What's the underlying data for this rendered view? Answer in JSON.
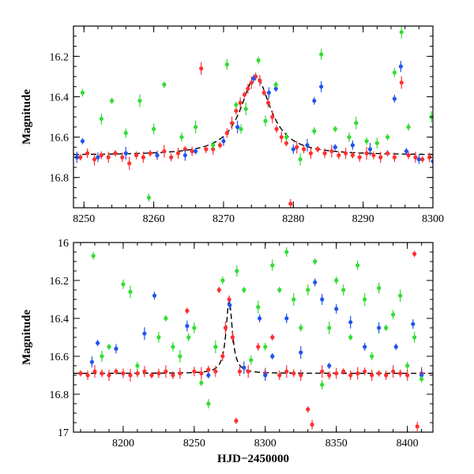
{
  "chart_data": [
    {
      "type": "scatter",
      "panel": "top",
      "xlabel": "",
      "ylabel": "Magnitude",
      "xlim": [
        8248.5,
        8300
      ],
      "ylim": [
        16.95,
        16.05
      ],
      "y_inverted": true,
      "x_ticks": [
        8250,
        8260,
        8270,
        8280,
        8290,
        8300
      ],
      "y_ticks": [
        16.2,
        16.4,
        16.6,
        16.8
      ],
      "baseline": 16.69,
      "peak": {
        "x": 8274.6,
        "y": 16.3
      },
      "model_curve": {
        "style": "dashed",
        "color": "#000000",
        "peak_x": 8274.6,
        "peak_mag": 16.3,
        "baseline_mag": 16.69,
        "width_days": 2.6
      },
      "series": [
        {
          "color": "#ff3030",
          "points": [
            [
              8249.5,
              16.7
            ],
            [
              8250.5,
              16.68
            ],
            [
              8251.5,
              16.71
            ],
            [
              8252.5,
              16.69
            ],
            [
              8253.5,
              16.7
            ],
            [
              8254.5,
              16.68
            ],
            [
              8255.5,
              16.7
            ],
            [
              8256.5,
              16.73
            ],
            [
              8257.5,
              16.69
            ],
            [
              8258.5,
              16.7
            ],
            [
              8259.5,
              16.68
            ],
            [
              8260.5,
              16.69
            ],
            [
              8261.5,
              16.67
            ],
            [
              8262.5,
              16.7
            ],
            [
              8263.5,
              16.68
            ],
            [
              8264.5,
              16.66
            ],
            [
              8265.5,
              16.67
            ],
            [
              8266.8,
              16.26
            ],
            [
              8267.5,
              16.66
            ],
            [
              8268.5,
              16.66
            ],
            [
              8269.5,
              16.64
            ],
            [
              8270.5,
              16.58
            ],
            [
              8271.2,
              16.53
            ],
            [
              8271.8,
              16.47
            ],
            [
              8272.4,
              16.43
            ],
            [
              8273.0,
              16.39
            ],
            [
              8273.5,
              16.36
            ],
            [
              8274.0,
              16.33
            ],
            [
              8274.6,
              16.3
            ],
            [
              8275.2,
              16.32
            ],
            [
              8275.8,
              16.38
            ],
            [
              8276.4,
              16.43
            ],
            [
              8277.0,
              16.5
            ],
            [
              8277.6,
              16.56
            ],
            [
              8278.3,
              16.6
            ],
            [
              8279.0,
              16.63
            ],
            [
              8279.6,
              16.93
            ],
            [
              8280.5,
              16.65
            ],
            [
              8281.5,
              16.66
            ],
            [
              8282.5,
              16.68
            ],
            [
              8283.5,
              16.66
            ],
            [
              8284.5,
              16.68
            ],
            [
              8285.5,
              16.67
            ],
            [
              8286.5,
              16.69
            ],
            [
              8287.5,
              16.68
            ],
            [
              8288.5,
              16.69
            ],
            [
              8289.5,
              16.7
            ],
            [
              8290.5,
              16.68
            ],
            [
              8291.5,
              16.69
            ],
            [
              8292.5,
              16.7
            ],
            [
              8293.5,
              16.68
            ],
            [
              8294.5,
              16.7
            ],
            [
              8295.5,
              16.33
            ],
            [
              8296.5,
              16.69
            ],
            [
              8297.5,
              16.7
            ],
            [
              8298.5,
              16.71
            ],
            [
              8299.5,
              16.7
            ]
          ]
        },
        {
          "color": "#2255ee",
          "points": [
            [
              8249.0,
              16.7
            ],
            [
              8249.8,
              16.62
            ],
            [
              8252.0,
              16.7
            ],
            [
              8256.0,
              16.68
            ],
            [
              8260.5,
              16.69
            ],
            [
              8264.5,
              16.69
            ],
            [
              8266.0,
              16.67
            ],
            [
              8270.0,
              16.62
            ],
            [
              8272.0,
              16.55
            ],
            [
              8274.3,
              16.31
            ],
            [
              8276.5,
              16.38
            ],
            [
              8277.5,
              16.36
            ],
            [
              8280.0,
              16.66
            ],
            [
              8282.0,
              16.64
            ],
            [
              8283.0,
              16.42
            ],
            [
              8284.0,
              16.35
            ],
            [
              8286.0,
              16.65
            ],
            [
              8288.5,
              16.64
            ],
            [
              8291.0,
              16.66
            ],
            [
              8294.5,
              16.41
            ],
            [
              8295.4,
              16.25
            ],
            [
              8296.2,
              16.67
            ],
            [
              8298.0,
              16.71
            ],
            [
              8300.0,
              16.72
            ]
          ]
        },
        {
          "color": "#33dd33",
          "points": [
            [
              8249.8,
              16.38
            ],
            [
              8252.5,
              16.51
            ],
            [
              8254.0,
              16.42
            ],
            [
              8256.0,
              16.58
            ],
            [
              8258.0,
              16.42
            ],
            [
              8259.3,
              16.9
            ],
            [
              8260.0,
              16.56
            ],
            [
              8261.5,
              16.34
            ],
            [
              8264.0,
              16.6
            ],
            [
              8266.0,
              16.55
            ],
            [
              8268.5,
              16.64
            ],
            [
              8270.5,
              16.24
            ],
            [
              8271.8,
              16.44
            ],
            [
              8272.5,
              16.56
            ],
            [
              8273.2,
              16.46
            ],
            [
              8275.0,
              16.22
            ],
            [
              8276.0,
              16.52
            ],
            [
              8277.5,
              16.34
            ],
            [
              8279.0,
              16.6
            ],
            [
              8281.0,
              16.71
            ],
            [
              8283.0,
              16.57
            ],
            [
              8284.0,
              16.19
            ],
            [
              8286.0,
              16.56
            ],
            [
              8288.0,
              16.6
            ],
            [
              8289.0,
              16.53
            ],
            [
              8290.5,
              16.62
            ],
            [
              8292.0,
              16.63
            ],
            [
              8293.5,
              16.6
            ],
            [
              8294.5,
              16.28
            ],
            [
              8295.5,
              16.08
            ],
            [
              8296.5,
              16.55
            ],
            [
              8299.8,
              16.5
            ]
          ]
        }
      ]
    },
    {
      "type": "scatter",
      "panel": "bottom",
      "xlabel": "HJD−2450000",
      "ylabel": "Magnitude",
      "xlim": [
        8165,
        8418
      ],
      "ylim": [
        17.0,
        16.0
      ],
      "y_inverted": true,
      "x_ticks": [
        8200,
        8250,
        8300,
        8350,
        8400
      ],
      "y_ticks": [
        16.0,
        16.2,
        16.4,
        16.6,
        16.8,
        17.0
      ],
      "baseline": 16.69,
      "peak": {
        "x": 8274.6,
        "y": 16.3
      },
      "model_curve": {
        "style": "dashed",
        "color": "#000000",
        "peak_x": 8274.6,
        "peak_mag": 16.3,
        "baseline_mag": 16.69,
        "width_days": 2.6
      },
      "series": [
        {
          "color": "#ff3030",
          "points": [
            [
              8170,
              16.69
            ],
            [
              8175,
              16.7
            ],
            [
              8180,
              16.68
            ],
            [
              8185,
              16.69
            ],
            [
              8190,
              16.7
            ],
            [
              8195,
              16.68
            ],
            [
              8200,
              16.69
            ],
            [
              8205,
              16.7
            ],
            [
              8210,
              16.69
            ],
            [
              8215,
              16.68
            ],
            [
              8220,
              16.7
            ],
            [
              8225,
              16.69
            ],
            [
              8230,
              16.68
            ],
            [
              8235,
              16.7
            ],
            [
              8240,
              16.69
            ],
            [
              8245,
              16.36
            ],
            [
              8250,
              16.68
            ],
            [
              8255,
              16.69
            ],
            [
              8260,
              16.67
            ],
            [
              8265,
              16.68
            ],
            [
              8267.5,
              16.25
            ],
            [
              8270,
              16.6
            ],
            [
              8272,
              16.45
            ],
            [
              8274.6,
              16.3
            ],
            [
              8277,
              16.5
            ],
            [
              8279.5,
              16.94
            ],
            [
              8282,
              16.68
            ],
            [
              8288,
              16.68
            ],
            [
              8295,
              16.55
            ],
            [
              8300,
              16.69
            ],
            [
              8305,
              16.5
            ],
            [
              8310,
              16.7
            ],
            [
              8315,
              16.68
            ],
            [
              8320,
              16.69
            ],
            [
              8325,
              16.7
            ],
            [
              8330,
              16.88
            ],
            [
              8333,
              16.96
            ],
            [
              8340,
              16.68
            ],
            [
              8345,
              16.7
            ],
            [
              8350,
              16.69
            ],
            [
              8355,
              16.68
            ],
            [
              8360,
              16.7
            ],
            [
              8365,
              16.69
            ],
            [
              8370,
              16.68
            ],
            [
              8375,
              16.7
            ],
            [
              8380,
              16.69
            ],
            [
              8385,
              16.7
            ],
            [
              8390,
              16.68
            ],
            [
              8395,
              16.69
            ],
            [
              8400,
              16.7
            ],
            [
              8405,
              16.06
            ],
            [
              8407,
              16.97
            ],
            [
              8410,
              16.69
            ]
          ]
        },
        {
          "color": "#2255ee",
          "points": [
            [
              8178,
              16.63
            ],
            [
              8182,
              16.53
            ],
            [
              8195,
              16.56
            ],
            [
              8215,
              16.48
            ],
            [
              8222,
              16.28
            ],
            [
              8245,
              16.44
            ],
            [
              8260,
              16.7
            ],
            [
              8275,
              16.33
            ],
            [
              8285,
              16.66
            ],
            [
              8296,
              16.4
            ],
            [
              8300,
              16.7
            ],
            [
              8305,
              16.6
            ],
            [
              8315,
              16.4
            ],
            [
              8325,
              16.58
            ],
            [
              8335,
              16.21
            ],
            [
              8340,
              16.3
            ],
            [
              8345,
              16.65
            ],
            [
              8350,
              16.35
            ],
            [
              8360,
              16.42
            ],
            [
              8370,
              16.55
            ],
            [
              8380,
              16.45
            ],
            [
              8392,
              16.55
            ],
            [
              8404,
              16.43
            ],
            [
              8410,
              16.7
            ]
          ]
        },
        {
          "color": "#33dd33",
          "points": [
            [
              8179,
              16.07
            ],
            [
              8185,
              16.6
            ],
            [
              8190,
              16.55
            ],
            [
              8200,
              16.22
            ],
            [
              8205,
              16.26
            ],
            [
              8210,
              16.65
            ],
            [
              8225,
              16.5
            ],
            [
              8230,
              16.4
            ],
            [
              8235,
              16.55
            ],
            [
              8240,
              16.6
            ],
            [
              8246,
              16.5
            ],
            [
              8250,
              16.45
            ],
            [
              8255,
              16.74
            ],
            [
              8260,
              16.85
            ],
            [
              8265,
              16.55
            ],
            [
              8270,
              16.2
            ],
            [
              8280,
              16.15
            ],
            [
              8285,
              16.25
            ],
            [
              8290,
              16.62
            ],
            [
              8295,
              16.34
            ],
            [
              8300,
              16.55
            ],
            [
              8305,
              16.12
            ],
            [
              8310,
              16.25
            ],
            [
              8315,
              16.05
            ],
            [
              8320,
              16.3
            ],
            [
              8325,
              16.45
            ],
            [
              8330,
              16.25
            ],
            [
              8335,
              16.1
            ],
            [
              8340,
              16.75
            ],
            [
              8345,
              16.45
            ],
            [
              8350,
              16.2
            ],
            [
              8355,
              16.25
            ],
            [
              8360,
              16.5
            ],
            [
              8365,
              16.12
            ],
            [
              8370,
              16.3
            ],
            [
              8375,
              16.6
            ],
            [
              8380,
              16.24
            ],
            [
              8385,
              16.45
            ],
            [
              8390,
              16.38
            ],
            [
              8395,
              16.28
            ],
            [
              8400,
              16.65
            ],
            [
              8405,
              16.5
            ],
            [
              8410,
              16.72
            ]
          ]
        }
      ]
    }
  ]
}
